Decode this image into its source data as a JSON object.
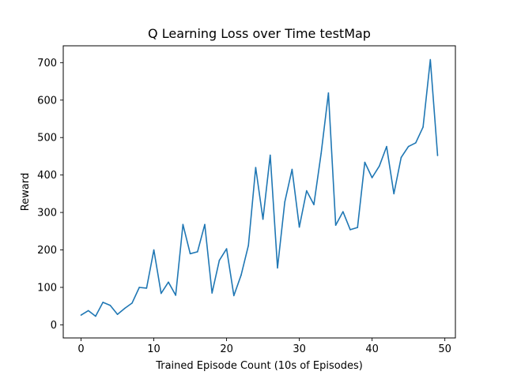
{
  "chart_data": {
    "type": "line",
    "title": "Q Learning Loss over Time testMap",
    "xlabel": "Trained Episode Count (10s of Episodes)",
    "ylabel": "Reward",
    "xlim": [
      -2.45,
      51.45
    ],
    "ylim": [
      -35,
      745
    ],
    "xticks": [
      0,
      10,
      20,
      30,
      40,
      50
    ],
    "yticks": [
      0,
      100,
      200,
      300,
      400,
      500,
      600,
      700
    ],
    "grid": false,
    "series": [
      {
        "color": "#1f77b4",
        "x": [
          0,
          1,
          2,
          3,
          4,
          5,
          6,
          7,
          8,
          9,
          10,
          11,
          12,
          13,
          14,
          15,
          16,
          17,
          18,
          19,
          20,
          21,
          22,
          23,
          24,
          25,
          26,
          27,
          28,
          29,
          30,
          31,
          32,
          33,
          34,
          35,
          36,
          37,
          38,
          39,
          40,
          41,
          42,
          43,
          44,
          45,
          46,
          47,
          48,
          49
        ],
        "values": [
          26,
          38,
          23,
          60,
          52,
          28,
          44,
          58,
          100,
          98,
          200,
          84,
          114,
          79,
          268,
          190,
          195,
          268,
          85,
          172,
          203,
          78,
          133,
          212,
          420,
          282,
          453,
          152,
          328,
          415,
          261,
          358,
          321,
          458,
          619,
          266,
          302,
          254,
          260,
          434,
          393,
          424,
          476,
          350,
          447,
          476,
          486,
          528,
          708,
          452
        ]
      }
    ]
  }
}
